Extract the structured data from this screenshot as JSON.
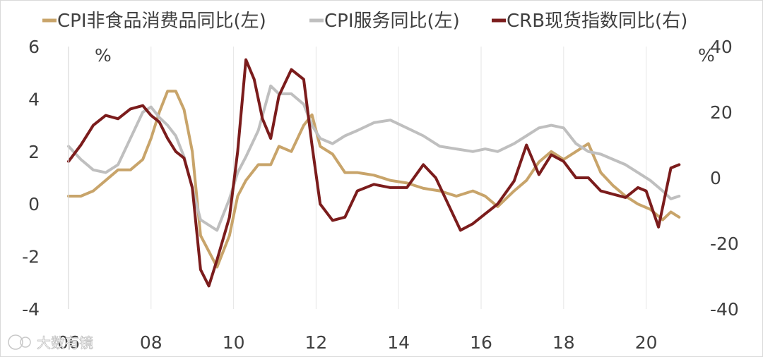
{
  "chart_data": {
    "type": "line",
    "title": "",
    "legend_position": "top",
    "grid": "vertical",
    "x_label": "",
    "x_ticks": [
      "06",
      "08",
      "10",
      "12",
      "14",
      "16",
      "18",
      "20"
    ],
    "x_range": [
      2006,
      2021
    ],
    "y_left": {
      "unit": "%",
      "range": [
        -4,
        6
      ],
      "ticks": [
        "6",
        "4",
        "2",
        "0",
        "-2",
        "-4"
      ]
    },
    "y_right": {
      "unit": "%",
      "range": [
        -40,
        40
      ],
      "ticks": [
        "40",
        "20",
        "0",
        "-20",
        "-40"
      ]
    },
    "series": [
      {
        "name": "CPI非食品消费品同比(左)",
        "axis": "left",
        "color": "#c8a46a",
        "points": [
          [
            2006.0,
            0.3
          ],
          [
            2006.3,
            0.3
          ],
          [
            2006.6,
            0.5
          ],
          [
            2006.9,
            0.9
          ],
          [
            2007.2,
            1.3
          ],
          [
            2007.5,
            1.3
          ],
          [
            2007.8,
            1.7
          ],
          [
            2008.0,
            2.5
          ],
          [
            2008.2,
            3.5
          ],
          [
            2008.4,
            4.3
          ],
          [
            2008.6,
            4.3
          ],
          [
            2008.8,
            3.6
          ],
          [
            2009.0,
            2.0
          ],
          [
            2009.2,
            -1.2
          ],
          [
            2009.4,
            -1.8
          ],
          [
            2009.6,
            -2.4
          ],
          [
            2009.9,
            -1.2
          ],
          [
            2010.1,
            0.3
          ],
          [
            2010.3,
            0.9
          ],
          [
            2010.6,
            1.5
          ],
          [
            2010.9,
            1.5
          ],
          [
            2011.1,
            2.2
          ],
          [
            2011.4,
            2.0
          ],
          [
            2011.7,
            3.0
          ],
          [
            2011.9,
            3.4
          ],
          [
            2012.1,
            2.2
          ],
          [
            2012.4,
            1.9
          ],
          [
            2012.7,
            1.2
          ],
          [
            2013.0,
            1.2
          ],
          [
            2013.4,
            1.1
          ],
          [
            2013.8,
            0.9
          ],
          [
            2014.2,
            0.8
          ],
          [
            2014.6,
            0.6
          ],
          [
            2015.0,
            0.5
          ],
          [
            2015.4,
            0.3
          ],
          [
            2015.8,
            0.5
          ],
          [
            2016.1,
            0.3
          ],
          [
            2016.4,
            -0.1
          ],
          [
            2016.8,
            0.5
          ],
          [
            2017.1,
            0.9
          ],
          [
            2017.4,
            1.6
          ],
          [
            2017.7,
            2.0
          ],
          [
            2018.0,
            1.7
          ],
          [
            2018.3,
            2.0
          ],
          [
            2018.6,
            2.3
          ],
          [
            2018.9,
            1.2
          ],
          [
            2019.2,
            0.7
          ],
          [
            2019.5,
            0.3
          ],
          [
            2019.8,
            0.0
          ],
          [
            2020.1,
            -0.2
          ],
          [
            2020.4,
            -0.6
          ],
          [
            2020.6,
            -0.3
          ],
          [
            2020.8,
            -0.5
          ]
        ]
      },
      {
        "name": "CPI服务同比(左)",
        "axis": "left",
        "color": "#bfbfbf",
        "points": [
          [
            2006.0,
            2.2
          ],
          [
            2006.3,
            1.7
          ],
          [
            2006.6,
            1.3
          ],
          [
            2006.9,
            1.2
          ],
          [
            2007.2,
            1.5
          ],
          [
            2007.5,
            2.5
          ],
          [
            2007.8,
            3.5
          ],
          [
            2008.0,
            3.7
          ],
          [
            2008.2,
            3.3
          ],
          [
            2008.4,
            3.0
          ],
          [
            2008.6,
            2.6
          ],
          [
            2008.8,
            1.8
          ],
          [
            2009.0,
            0.6
          ],
          [
            2009.2,
            -0.6
          ],
          [
            2009.4,
            -0.8
          ],
          [
            2009.6,
            -1.0
          ],
          [
            2009.9,
            0.2
          ],
          [
            2010.1,
            1.2
          ],
          [
            2010.3,
            1.8
          ],
          [
            2010.6,
            2.8
          ],
          [
            2010.9,
            4.5
          ],
          [
            2011.1,
            4.2
          ],
          [
            2011.4,
            4.2
          ],
          [
            2011.7,
            3.8
          ],
          [
            2011.9,
            3.0
          ],
          [
            2012.1,
            2.5
          ],
          [
            2012.4,
            2.3
          ],
          [
            2012.7,
            2.6
          ],
          [
            2013.0,
            2.8
          ],
          [
            2013.4,
            3.1
          ],
          [
            2013.8,
            3.2
          ],
          [
            2014.2,
            2.9
          ],
          [
            2014.6,
            2.6
          ],
          [
            2015.0,
            2.2
          ],
          [
            2015.4,
            2.1
          ],
          [
            2015.8,
            2.0
          ],
          [
            2016.1,
            2.1
          ],
          [
            2016.4,
            2.0
          ],
          [
            2016.8,
            2.3
          ],
          [
            2017.1,
            2.6
          ],
          [
            2017.4,
            2.9
          ],
          [
            2017.7,
            3.0
          ],
          [
            2018.0,
            2.9
          ],
          [
            2018.3,
            2.3
          ],
          [
            2018.6,
            2.0
          ],
          [
            2018.9,
            1.9
          ],
          [
            2019.2,
            1.7
          ],
          [
            2019.5,
            1.5
          ],
          [
            2019.8,
            1.2
          ],
          [
            2020.1,
            0.9
          ],
          [
            2020.4,
            0.5
          ],
          [
            2020.6,
            0.2
          ],
          [
            2020.8,
            0.3
          ]
        ]
      },
      {
        "name": "CRB现货指数同比(右)",
        "axis": "right",
        "color": "#7b1c1c",
        "points": [
          [
            2006.0,
            5
          ],
          [
            2006.3,
            10
          ],
          [
            2006.6,
            16
          ],
          [
            2006.9,
            19
          ],
          [
            2007.2,
            18
          ],
          [
            2007.5,
            21
          ],
          [
            2007.8,
            22
          ],
          [
            2008.0,
            19
          ],
          [
            2008.2,
            17
          ],
          [
            2008.4,
            12
          ],
          [
            2008.6,
            8
          ],
          [
            2008.8,
            6
          ],
          [
            2009.0,
            -3
          ],
          [
            2009.2,
            -28
          ],
          [
            2009.4,
            -33
          ],
          [
            2009.6,
            -25
          ],
          [
            2009.9,
            -12
          ],
          [
            2010.1,
            8
          ],
          [
            2010.3,
            36
          ],
          [
            2010.5,
            30
          ],
          [
            2010.7,
            18
          ],
          [
            2010.9,
            12
          ],
          [
            2011.1,
            25
          ],
          [
            2011.4,
            33
          ],
          [
            2011.7,
            30
          ],
          [
            2011.9,
            10
          ],
          [
            2012.1,
            -8
          ],
          [
            2012.4,
            -13
          ],
          [
            2012.7,
            -12
          ],
          [
            2013.0,
            -4
          ],
          [
            2013.4,
            -2
          ],
          [
            2013.8,
            -3
          ],
          [
            2014.2,
            -3
          ],
          [
            2014.6,
            4
          ],
          [
            2014.9,
            0
          ],
          [
            2015.2,
            -8
          ],
          [
            2015.5,
            -16
          ],
          [
            2015.8,
            -14
          ],
          [
            2016.1,
            -11
          ],
          [
            2016.4,
            -8
          ],
          [
            2016.8,
            -1
          ],
          [
            2017.1,
            10
          ],
          [
            2017.4,
            1
          ],
          [
            2017.7,
            7
          ],
          [
            2018.0,
            5
          ],
          [
            2018.3,
            0
          ],
          [
            2018.6,
            0
          ],
          [
            2018.9,
            -4
          ],
          [
            2019.2,
            -5
          ],
          [
            2019.5,
            -6
          ],
          [
            2019.8,
            -3
          ],
          [
            2020.0,
            -4
          ],
          [
            2020.3,
            -15
          ],
          [
            2020.6,
            3
          ],
          [
            2020.8,
            4
          ]
        ]
      }
    ]
  },
  "watermark": "大数有镜"
}
